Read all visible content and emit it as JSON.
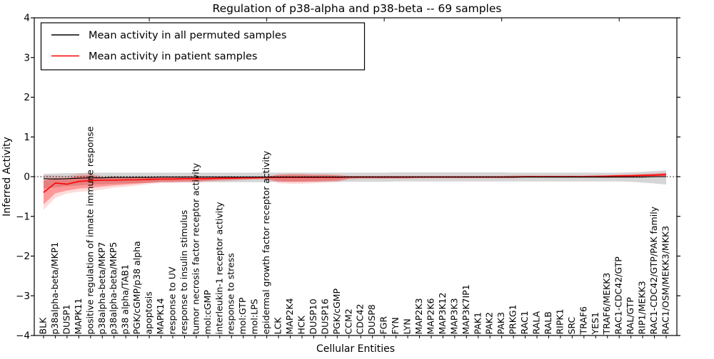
{
  "chart_data": {
    "type": "line",
    "title": "Regulation of p38-alpha and p38-beta -- 69 samples",
    "xlabel": "Cellular Entities",
    "ylabel": "Inferred Activity",
    "ylim": [
      -4,
      4
    ],
    "yticks": [
      -4,
      -3,
      -2,
      -1,
      0,
      1,
      2,
      3,
      4
    ],
    "grid": false,
    "zero_reference_line": 0,
    "legend": {
      "position": "upper left",
      "entries": [
        {
          "label": "Mean activity in all permuted samples",
          "color": "#000000"
        },
        {
          "label": "Mean activity in patient samples",
          "color": "#ff0000"
        }
      ]
    },
    "categories": [
      "BLK",
      "p38alpha-beta/MKP1",
      "DUSP1",
      "MAPK11",
      "positive regulation of innate immune response",
      "p38alpha-beta/MKP7",
      "p38alpha-beta/MKP5",
      "p38 alpha/TAB1",
      "PGK/cGMP/p38 alpha",
      "apoptosis",
      "MAPK14",
      "response to UV",
      "response to insulin stimulus",
      "tumor necrosis factor receptor activity",
      "mol:cGMP",
      "interleukin-1 receptor activity",
      "response to stress",
      "mol:GTP",
      "mol:LPS",
      "epidermal growth factor receptor activity",
      "LCK",
      "MAP2K4",
      "HCK",
      "DUSP10",
      "DUSP16",
      "PGK/cGMP",
      "CCM2",
      "CDC42",
      "DUSP8",
      "FGR",
      "FYN",
      "LYN",
      "MAP2K3",
      "MAP2K6",
      "MAP3K12",
      "MAP3K3",
      "MAP3K7IP1",
      "PAK1",
      "PAK2",
      "PAK3",
      "PRKG1",
      "RAC1",
      "RALA",
      "RALB",
      "RIPK1",
      "SRC",
      "TRAF6",
      "YES1",
      "TRAF6/MEKK3",
      "RAC1-CDC42/GTP",
      "RAL/GTP",
      "RIP1/MEKK3",
      "RAC1-CDC42/GTP/PAK family",
      "RAC1/OSM/MEKK3/MKK3"
    ],
    "series": [
      {
        "name": "Mean activity in all permuted samples",
        "color": "#000000",
        "band_color": "rgba(0,0,0,0.16)",
        "values": [
          -0.05,
          -0.06,
          -0.05,
          -0.04,
          -0.03,
          -0.03,
          -0.02,
          -0.02,
          -0.02,
          -0.02,
          -0.01,
          -0.01,
          -0.01,
          -0.01,
          -0.01,
          -0.01,
          -0.01,
          -0.01,
          -0.01,
          -0.01,
          -0.01,
          -0.01,
          -0.01,
          -0.01,
          -0.01,
          -0.01,
          -0.01,
          -0.01,
          -0.01,
          -0.01,
          -0.01,
          -0.01,
          -0.01,
          -0.01,
          -0.01,
          -0.01,
          -0.01,
          -0.01,
          -0.01,
          -0.01,
          -0.01,
          -0.01,
          -0.01,
          -0.01,
          -0.01,
          -0.01,
          -0.01,
          -0.01,
          -0.01,
          -0.01,
          -0.01,
          -0.01,
          0.0,
          0.0
        ],
        "band_upper": [
          0.07,
          0.08,
          0.09,
          0.09,
          0.1,
          0.1,
          0.1,
          0.1,
          0.1,
          0.1,
          0.1,
          0.1,
          0.1,
          0.1,
          0.1,
          0.1,
          0.1,
          0.1,
          0.1,
          0.1,
          0.1,
          0.1,
          0.1,
          0.1,
          0.1,
          0.1,
          0.1,
          0.1,
          0.1,
          0.1,
          0.11,
          0.11,
          0.11,
          0.11,
          0.11,
          0.11,
          0.11,
          0.11,
          0.11,
          0.11,
          0.1,
          0.1,
          0.1,
          0.1,
          0.1,
          0.1,
          0.1,
          0.1,
          0.1,
          0.1,
          0.11,
          0.12,
          0.14,
          0.16
        ],
        "band_lower": [
          -0.3,
          -0.27,
          -0.24,
          -0.22,
          -0.2,
          -0.19,
          -0.18,
          -0.17,
          -0.16,
          -0.16,
          -0.14,
          -0.14,
          -0.14,
          -0.14,
          -0.14,
          -0.14,
          -0.14,
          -0.14,
          -0.14,
          -0.14,
          -0.13,
          -0.13,
          -0.13,
          -0.13,
          -0.13,
          -0.13,
          -0.13,
          -0.13,
          -0.13,
          -0.13,
          -0.12,
          -0.12,
          -0.12,
          -0.12,
          -0.12,
          -0.12,
          -0.12,
          -0.12,
          -0.12,
          -0.12,
          -0.12,
          -0.12,
          -0.12,
          -0.12,
          -0.12,
          -0.12,
          -0.12,
          -0.12,
          -0.12,
          -0.12,
          -0.13,
          -0.15,
          -0.17,
          -0.2
        ]
      },
      {
        "name": "Mean activity in patient samples",
        "color": "#ff0000",
        "band_color": "rgba(255,0,0,0.30)",
        "values": [
          -0.4,
          -0.16,
          -0.19,
          -0.12,
          -0.1,
          -0.09,
          -0.09,
          -0.08,
          -0.08,
          -0.07,
          -0.06,
          -0.06,
          -0.05,
          -0.05,
          -0.05,
          -0.04,
          -0.04,
          -0.03,
          -0.03,
          -0.02,
          -0.02,
          -0.02,
          -0.02,
          -0.02,
          -0.02,
          -0.02,
          -0.01,
          -0.01,
          -0.01,
          -0.01,
          -0.01,
          -0.01,
          -0.01,
          -0.01,
          -0.01,
          -0.01,
          -0.01,
          -0.01,
          -0.01,
          -0.01,
          -0.01,
          0.0,
          0.0,
          0.0,
          0.0,
          0.0,
          0.0,
          0.0,
          0.01,
          0.02,
          0.02,
          0.03,
          0.04,
          0.05
        ],
        "band_upper": [
          -0.1,
          -0.03,
          -0.05,
          0.02,
          0.03,
          -0.02,
          -0.02,
          -0.03,
          -0.02,
          -0.02,
          -0.02,
          -0.02,
          -0.01,
          -0.01,
          -0.01,
          -0.01,
          -0.01,
          -0.01,
          -0.01,
          0.0,
          0.04,
          0.05,
          0.05,
          0.04,
          0.04,
          0.03,
          0.01,
          0.01,
          0.01,
          0.01,
          0.01,
          0.01,
          0.01,
          0.01,
          0.01,
          0.01,
          0.01,
          0.01,
          0.01,
          0.01,
          0.02,
          0.02,
          0.02,
          0.02,
          0.02,
          0.02,
          0.02,
          0.03,
          0.03,
          0.04,
          0.05,
          0.06,
          0.07,
          0.09
        ],
        "band_lower": [
          -0.7,
          -0.42,
          -0.35,
          -0.3,
          -0.28,
          -0.25,
          -0.22,
          -0.2,
          -0.18,
          -0.15,
          -0.13,
          -0.13,
          -0.12,
          -0.12,
          -0.1,
          -0.09,
          -0.08,
          -0.07,
          -0.06,
          -0.06,
          -0.12,
          -0.13,
          -0.13,
          -0.12,
          -0.11,
          -0.1,
          -0.05,
          -0.04,
          -0.04,
          -0.04,
          -0.04,
          -0.04,
          -0.03,
          -0.03,
          -0.03,
          -0.03,
          -0.03,
          -0.03,
          -0.03,
          -0.03,
          -0.03,
          -0.02,
          -0.02,
          -0.02,
          -0.02,
          -0.02,
          -0.02,
          -0.02,
          -0.02,
          -0.01,
          -0.01,
          0.0,
          0.0,
          0.01
        ]
      }
    ]
  }
}
